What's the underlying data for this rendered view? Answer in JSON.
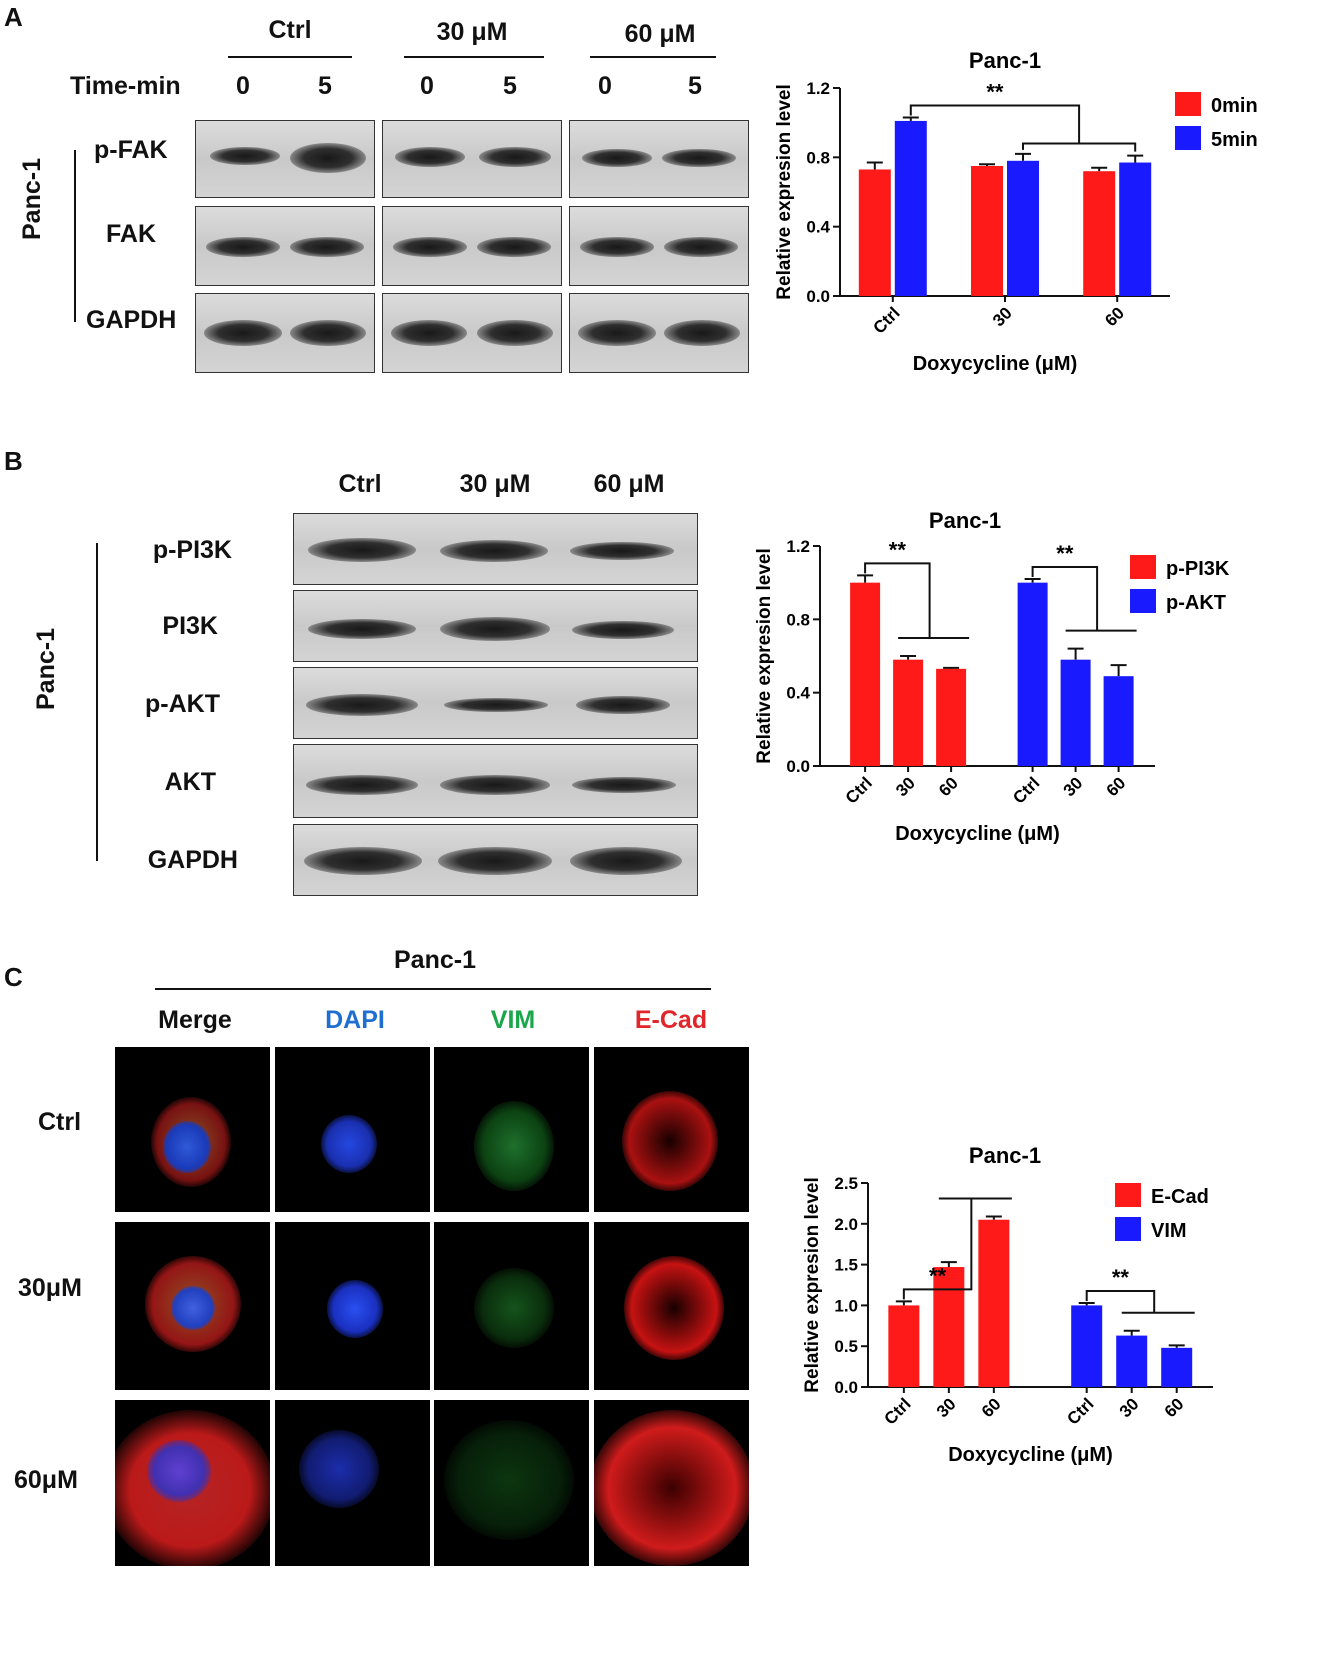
{
  "panels": {
    "a": "A",
    "b": "B",
    "c": "C"
  },
  "panel_a": {
    "cell_line": "Panc-1",
    "groups": [
      "Ctrl",
      "30 μM",
      "60 μM"
    ],
    "time_label": "Time-min",
    "times": [
      "0",
      "5",
      "0",
      "5",
      "0",
      "5"
    ],
    "proteins": [
      "p-FAK",
      "FAK",
      "GAPDH"
    ]
  },
  "panel_b": {
    "cell_line": "Panc-1",
    "groups": [
      "Ctrl",
      "30 μM",
      "60 μM"
    ],
    "proteins": [
      "p-PI3K",
      "PI3K",
      "p-AKT",
      "AKT",
      "GAPDH"
    ]
  },
  "panel_c": {
    "header": "Panc-1",
    "columns": [
      "Merge",
      "DAPI",
      "VIM",
      "E-Cad"
    ],
    "column_colors": [
      "#111111",
      "#1e6fd0",
      "#1aa64a",
      "#e0262a"
    ],
    "rows": [
      "Ctrl",
      "30μM",
      "60μM"
    ]
  },
  "colors": {
    "red": "#ff1a1a",
    "blue": "#1a1aff"
  },
  "chart_data": [
    {
      "type": "bar",
      "title": "Panc-1",
      "xlabel": "Doxycycline (μM)",
      "ylabel": "Relative expresion level",
      "categories": [
        "Ctrl",
        "30",
        "60"
      ],
      "ylim": [
        0,
        1.2
      ],
      "yticks": [
        "0.0",
        "0.4",
        "0.8",
        "1.2"
      ],
      "series": [
        {
          "name": "0min",
          "values": [
            0.73,
            0.75,
            0.72
          ],
          "errors": [
            0.04,
            0.01,
            0.02
          ]
        },
        {
          "name": "5min",
          "values": [
            1.01,
            0.78,
            0.77
          ],
          "errors": [
            0.02,
            0.04,
            0.04
          ]
        }
      ],
      "annotation": "**",
      "legend": "right"
    },
    {
      "type": "bar",
      "title": "Panc-1",
      "xlabel": "Doxycycline (μM)",
      "ylabel": "Relative expresion level",
      "categories": [
        "Ctrl",
        "30",
        "60"
      ],
      "ylim": [
        0,
        1.2
      ],
      "yticks": [
        "0.0",
        "0.4",
        "0.8",
        "1.2"
      ],
      "series": [
        {
          "name": "p-PI3K",
          "values": [
            1.0,
            0.58,
            0.53
          ],
          "errors": [
            0.04,
            0.02,
            0.005
          ]
        },
        {
          "name": "p-AKT",
          "values": [
            1.0,
            0.58,
            0.49
          ],
          "errors": [
            0.02,
            0.06,
            0.06
          ]
        }
      ],
      "annotations": [
        "**",
        "**"
      ],
      "legend": "right"
    },
    {
      "type": "bar",
      "title": "Panc-1",
      "xlabel": "Doxycycline (μM)",
      "ylabel": "Relative expresion level",
      "categories": [
        "Ctrl",
        "30",
        "60"
      ],
      "ylim": [
        0,
        2.5
      ],
      "yticks": [
        "0.0",
        "0.5",
        "1.0",
        "1.5",
        "2.0",
        "2.5"
      ],
      "series": [
        {
          "name": "E-Cad",
          "values": [
            1.0,
            1.47,
            2.05
          ],
          "errors": [
            0.05,
            0.06,
            0.04
          ]
        },
        {
          "name": "VIM",
          "values": [
            1.0,
            0.63,
            0.48
          ],
          "errors": [
            0.03,
            0.06,
            0.03
          ]
        }
      ],
      "annotations": [
        "**",
        "**"
      ],
      "legend": "right"
    }
  ]
}
